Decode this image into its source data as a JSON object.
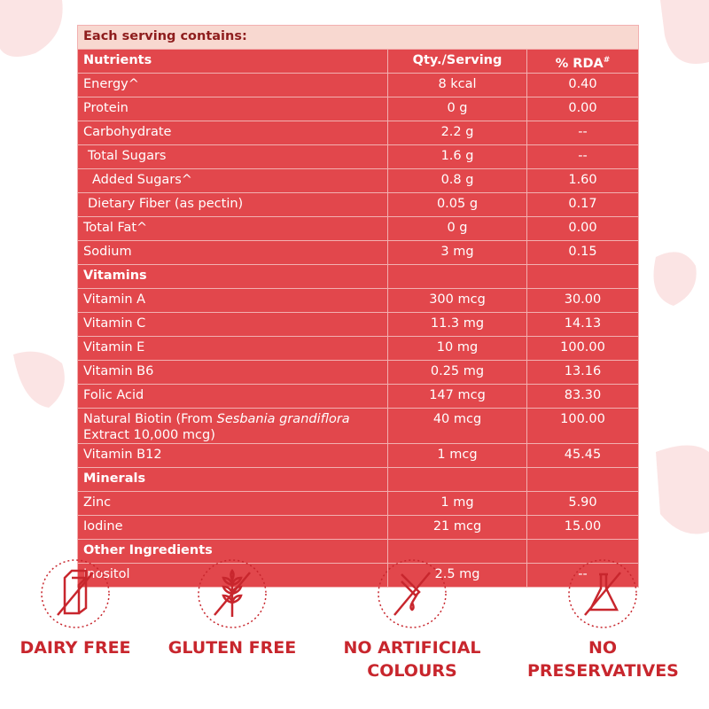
{
  "table": {
    "caption": "Each serving contains:",
    "columns": [
      "Nutrients",
      "Qty./Serving",
      "% RDA"
    ],
    "column_mark": "#",
    "rows": [
      {
        "cells": [
          "Energy^",
          "8 kcal",
          "0.40"
        ]
      },
      {
        "cells": [
          "Protein",
          "0 g",
          "0.00"
        ]
      },
      {
        "cells": [
          "Carbohydrate",
          "2.2 g",
          "--"
        ]
      },
      {
        "cells": [
          "Total Sugars",
          "1.6 g",
          "--"
        ],
        "indent": 1
      },
      {
        "cells": [
          "Added Sugars^",
          "0.8 g",
          "1.60"
        ],
        "indent": 2
      },
      {
        "cells": [
          "Dietary Fiber (as pectin)",
          "0.05 g",
          "0.17"
        ],
        "indent": 1
      },
      {
        "cells": [
          "Total Fat^",
          "0 g",
          "0.00"
        ]
      },
      {
        "cells": [
          "Sodium",
          "3 mg",
          "0.15"
        ]
      },
      {
        "section": "Vitamins"
      },
      {
        "cells": [
          "Vitamin A",
          "300 mcg",
          "30.00"
        ]
      },
      {
        "cells": [
          "Vitamin C",
          "11.3 mg",
          "14.13"
        ]
      },
      {
        "cells": [
          "Vitamin E",
          "10 mg",
          "100.00"
        ]
      },
      {
        "cells": [
          "Vitamin B6",
          "0.25 mg",
          "13.16"
        ]
      },
      {
        "cells": [
          "Folic Acid",
          "147 mcg",
          "83.30"
        ]
      },
      {
        "cells": [
          [
            {
              "text": "Natural Biotin (From "
            },
            {
              "text": "Sesbania grandiflora",
              "italic": true
            },
            {
              "text": " Extract 10,000 mcg)"
            }
          ],
          "40 mcg",
          "100.00"
        ]
      },
      {
        "cells": [
          "Vitamin B12",
          "1 mcg",
          "45.45"
        ]
      },
      {
        "section": "Minerals"
      },
      {
        "cells": [
          "Zinc",
          "1 mg",
          "5.90"
        ]
      },
      {
        "cells": [
          "Iodine",
          "21 mcg",
          "15.00"
        ]
      },
      {
        "section": "Other Ingredients"
      },
      {
        "cells": [
          "Inositol",
          "2.5 mg",
          "--"
        ]
      }
    ]
  },
  "badges": [
    {
      "label": "DAIRY FREE"
    },
    {
      "label": "GLUTEN FREE"
    },
    {
      "label": "NO ARTIFICIAL COLOURS"
    },
    {
      "label": "NO PRESERVATIVES"
    }
  ]
}
